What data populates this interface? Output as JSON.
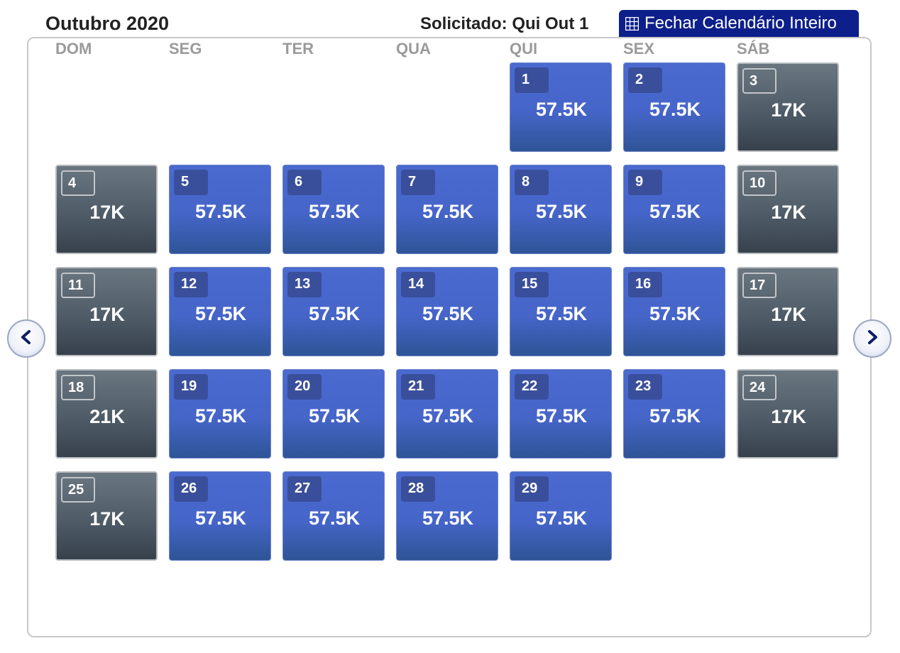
{
  "header": {
    "month_title": "Outubro 2020",
    "requested": "Solicitado: Qui Out 1",
    "close_button_label": "Fechar Calendário Inteiro"
  },
  "weekdays": [
    "DOM",
    "SEG",
    "TER",
    "QUA",
    "QUI",
    "SEX",
    "SÁB"
  ],
  "days": [
    {
      "day": "1",
      "price": "57.5K",
      "style": "blue",
      "col": 4,
      "row": 0
    },
    {
      "day": "2",
      "price": "57.5K",
      "style": "blue",
      "col": 5,
      "row": 0
    },
    {
      "day": "3",
      "price": "17K",
      "style": "gray",
      "col": 6,
      "row": 0
    },
    {
      "day": "4",
      "price": "17K",
      "style": "gray",
      "col": 0,
      "row": 1
    },
    {
      "day": "5",
      "price": "57.5K",
      "style": "blue",
      "col": 1,
      "row": 1
    },
    {
      "day": "6",
      "price": "57.5K",
      "style": "blue",
      "col": 2,
      "row": 1
    },
    {
      "day": "7",
      "price": "57.5K",
      "style": "blue",
      "col": 3,
      "row": 1
    },
    {
      "day": "8",
      "price": "57.5K",
      "style": "blue",
      "col": 4,
      "row": 1
    },
    {
      "day": "9",
      "price": "57.5K",
      "style": "blue",
      "col": 5,
      "row": 1
    },
    {
      "day": "10",
      "price": "17K",
      "style": "gray",
      "col": 6,
      "row": 1
    },
    {
      "day": "11",
      "price": "17K",
      "style": "gray",
      "col": 0,
      "row": 2
    },
    {
      "day": "12",
      "price": "57.5K",
      "style": "blue",
      "col": 1,
      "row": 2
    },
    {
      "day": "13",
      "price": "57.5K",
      "style": "blue",
      "col": 2,
      "row": 2
    },
    {
      "day": "14",
      "price": "57.5K",
      "style": "blue",
      "col": 3,
      "row": 2
    },
    {
      "day": "15",
      "price": "57.5K",
      "style": "blue",
      "col": 4,
      "row": 2
    },
    {
      "day": "16",
      "price": "57.5K",
      "style": "blue",
      "col": 5,
      "row": 2
    },
    {
      "day": "17",
      "price": "17K",
      "style": "gray",
      "col": 6,
      "row": 2
    },
    {
      "day": "18",
      "price": "21K",
      "style": "gray",
      "col": 0,
      "row": 3
    },
    {
      "day": "19",
      "price": "57.5K",
      "style": "blue",
      "col": 1,
      "row": 3
    },
    {
      "day": "20",
      "price": "57.5K",
      "style": "blue",
      "col": 2,
      "row": 3
    },
    {
      "day": "21",
      "price": "57.5K",
      "style": "blue",
      "col": 3,
      "row": 3
    },
    {
      "day": "22",
      "price": "57.5K",
      "style": "blue",
      "col": 4,
      "row": 3
    },
    {
      "day": "23",
      "price": "57.5K",
      "style": "blue",
      "col": 5,
      "row": 3
    },
    {
      "day": "24",
      "price": "17K",
      "style": "gray",
      "col": 6,
      "row": 3
    },
    {
      "day": "25",
      "price": "17K",
      "style": "gray",
      "col": 0,
      "row": 4
    },
    {
      "day": "26",
      "price": "57.5K",
      "style": "blue",
      "col": 1,
      "row": 4
    },
    {
      "day": "27",
      "price": "57.5K",
      "style": "blue",
      "col": 2,
      "row": 4
    },
    {
      "day": "28",
      "price": "57.5K",
      "style": "blue",
      "col": 3,
      "row": 4
    },
    {
      "day": "29",
      "price": "57.5K",
      "style": "blue",
      "col": 4,
      "row": 4
    }
  ],
  "icons": {
    "close_button": "grid-icon",
    "prev": "chevron-left-icon",
    "next": "chevron-right-icon"
  },
  "colors": {
    "accent": "#0d1f8a",
    "cell_blue": "#4665c9",
    "cell_gray": "#4f5c67"
  }
}
